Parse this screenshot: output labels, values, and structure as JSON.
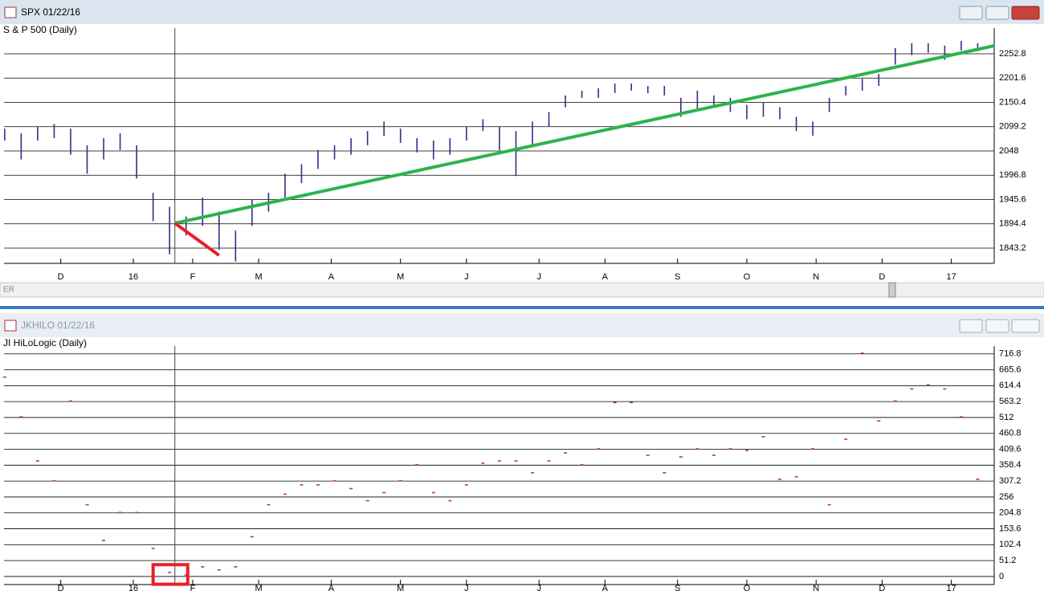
{
  "chart_data": [
    {
      "type": "hilo",
      "window_title": "SPX 01/22/16",
      "title": "S & P 500 (Daily)",
      "scrollbar_label": "ER",
      "color": "#3b2a8a",
      "x": [
        0,
        5,
        10,
        15,
        20,
        25,
        30,
        35,
        40,
        45,
        50,
        55,
        60,
        65,
        70,
        75,
        80,
        85,
        90,
        95,
        100,
        105,
        110,
        115,
        120,
        125,
        130,
        135,
        140,
        145,
        150,
        155,
        160,
        165,
        170,
        175,
        180,
        185,
        190,
        195,
        200,
        205,
        210,
        215,
        220,
        225,
        230,
        235,
        240,
        245,
        250,
        255,
        260,
        265,
        270,
        275,
        280,
        285,
        290,
        295
      ],
      "high": [
        2095,
        2085,
        2100,
        2105,
        2095,
        2060,
        2075,
        2085,
        2060,
        1960,
        1930,
        1910,
        1950,
        1920,
        1880,
        1945,
        1960,
        2000,
        2020,
        2050,
        2060,
        2075,
        2090,
        2110,
        2095,
        2075,
        2070,
        2075,
        2100,
        2115,
        2100,
        2090,
        2110,
        2130,
        2165,
        2175,
        2180,
        2190,
        2190,
        2185,
        2185,
        2160,
        2175,
        2165,
        2160,
        2145,
        2150,
        2140,
        2120,
        2110,
        2160,
        2185,
        2200,
        2210,
        2265,
        2275,
        2275,
        2270,
        2280,
        2275
      ],
      "low": [
        2070,
        2030,
        2070,
        2075,
        2040,
        2000,
        2030,
        2050,
        1990,
        1900,
        1830,
        1870,
        1890,
        1840,
        1815,
        1890,
        1920,
        1950,
        1980,
        2010,
        2030,
        2040,
        2060,
        2080,
        2065,
        2045,
        2030,
        2040,
        2070,
        2090,
        2050,
        1995,
        2060,
        2100,
        2140,
        2160,
        2160,
        2170,
        2175,
        2170,
        2165,
        2120,
        2135,
        2140,
        2130,
        2115,
        2120,
        2115,
        2090,
        2080,
        2130,
        2165,
        2175,
        2185,
        2230,
        2250,
        2255,
        2240,
        2260,
        2258
      ],
      "trendlines": [
        {
          "color": "#2db34a",
          "x": [
            51.6,
            300
          ],
          "y": [
            1895.7,
            2269.7
          ]
        },
        {
          "color": "#e8202a",
          "x": [
            51.6,
            65
          ],
          "y": [
            1895.7,
            1828
          ]
        }
      ],
      "cursor_x": 51.6,
      "xlim": [
        -0.2,
        300
      ],
      "ylim": [
        1811,
        2298.5
      ],
      "yticks": [
        1843.2,
        1894.4,
        1945.6,
        1996.8,
        2048,
        2099.2,
        2150.4,
        2201.6,
        2252.8
      ],
      "xticks": [
        {
          "value": 17,
          "label": "D"
        },
        {
          "value": 39,
          "label": "16"
        },
        {
          "value": 57,
          "label": "F"
        },
        {
          "value": 77,
          "label": "M"
        },
        {
          "value": 99,
          "label": "A"
        },
        {
          "value": 120,
          "label": "M"
        },
        {
          "value": 140,
          "label": "J"
        },
        {
          "value": 162,
          "label": "J"
        },
        {
          "value": 182,
          "label": "A"
        },
        {
          "value": 204,
          "label": "S"
        },
        {
          "value": 225,
          "label": "O"
        },
        {
          "value": 246,
          "label": "N"
        },
        {
          "value": 266,
          "label": "D"
        },
        {
          "value": 287,
          "label": "17"
        }
      ],
      "grid": true
    },
    {
      "type": "scatter",
      "window_title": "JKHILO 01/22/16",
      "title": "JI HiLoLogic (Daily)",
      "color": "#c8304a",
      "x": [
        0,
        5,
        10,
        15,
        20,
        25,
        30,
        35,
        40,
        45,
        50,
        55,
        60,
        65,
        70,
        75,
        80,
        85,
        90,
        95,
        100,
        105,
        110,
        115,
        120,
        125,
        130,
        135,
        140,
        145,
        150,
        155,
        160,
        165,
        170,
        175,
        180,
        185,
        190,
        195,
        200,
        205,
        210,
        215,
        220,
        225,
        230,
        235,
        240,
        245,
        250,
        255,
        260,
        265,
        270,
        275,
        280,
        285,
        290,
        295
      ],
      "values": [
        642,
        514,
        372,
        308,
        565,
        231,
        116,
        206,
        206,
        90,
        13,
        5,
        31,
        21,
        31,
        128,
        231,
        265,
        295,
        295,
        308,
        283,
        244,
        270,
        308,
        360,
        270,
        244,
        295,
        365,
        372,
        372,
        334,
        372,
        398,
        360,
        411,
        560,
        560,
        390,
        334,
        385,
        411,
        390,
        411,
        406,
        450,
        313,
        321,
        411,
        231,
        442,
        719,
        501,
        565,
        604,
        617,
        604,
        514,
        313
      ],
      "cursor_x": 51.6,
      "highlight_box": {
        "color": "#e8202a",
        "x": [
          45,
          55.5
        ],
        "y": [
          -25,
          38
        ]
      },
      "xlim": [
        -0.2,
        300
      ],
      "ylim": [
        -26,
        729
      ],
      "yticks": [
        0,
        51.2,
        102.4,
        153.6,
        204.8,
        256,
        307.2,
        358.4,
        409.6,
        460.8,
        512,
        563.2,
        614.4,
        665.6,
        716.8
      ],
      "xticks": [
        {
          "value": 17,
          "label": "D"
        },
        {
          "value": 39,
          "label": "16"
        },
        {
          "value": 57,
          "label": "F"
        },
        {
          "value": 77,
          "label": "M"
        },
        {
          "value": 99,
          "label": "A"
        },
        {
          "value": 120,
          "label": "M"
        },
        {
          "value": 140,
          "label": "J"
        },
        {
          "value": 162,
          "label": "J"
        },
        {
          "value": 182,
          "label": "A"
        },
        {
          "value": 204,
          "label": "S"
        },
        {
          "value": 225,
          "label": "O"
        },
        {
          "value": 246,
          "label": "N"
        },
        {
          "value": 266,
          "label": "D"
        },
        {
          "value": 287,
          "label": "17"
        }
      ],
      "grid": true
    }
  ]
}
